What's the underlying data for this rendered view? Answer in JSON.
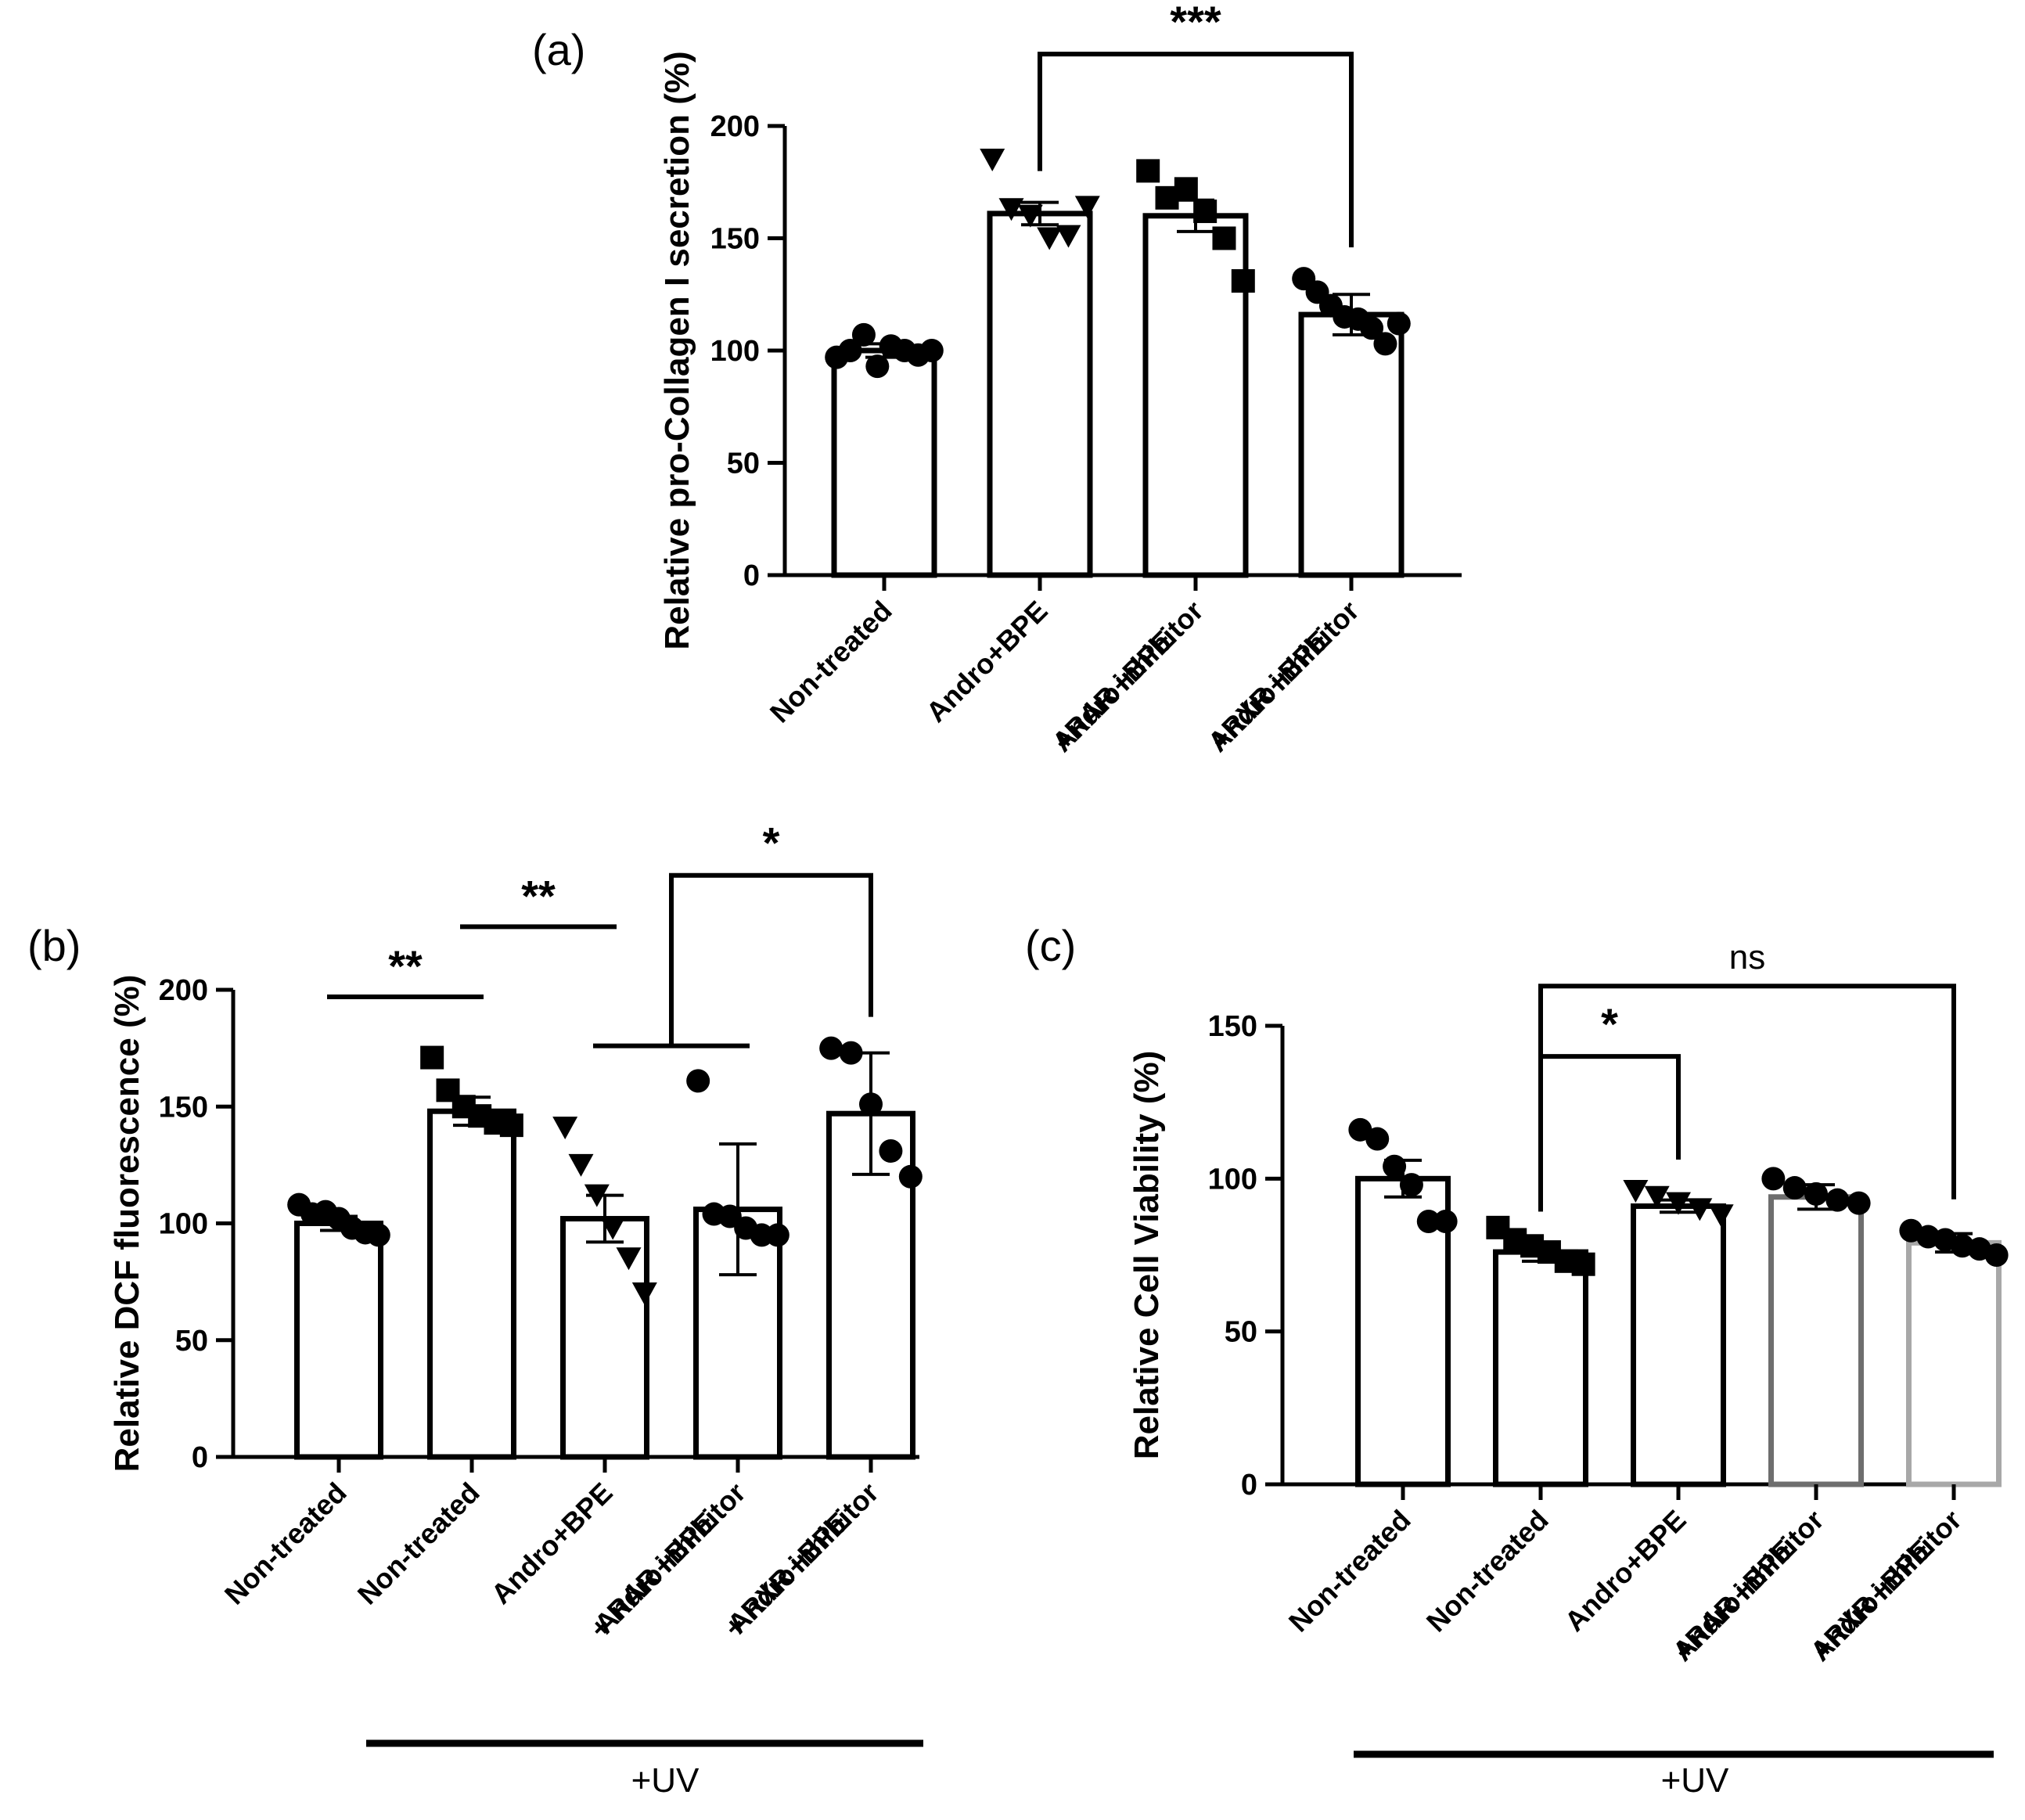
{
  "chart_data": [
    {
      "panel": "(a)",
      "type": "bar",
      "ylabel": "Relative pro-Collagen I secretion (%)",
      "ylim": [
        0,
        200
      ],
      "yticks": [
        0,
        50,
        100,
        150,
        200
      ],
      "categories": [
        [
          "Non-treated"
        ],
        [
          "Andro+BPE"
        ],
        [
          "Andro+BPE",
          "+RAR inhibitor"
        ],
        [
          "Andro+BPE",
          "+RXR inhibitor"
        ]
      ],
      "values": [
        100,
        161,
        160,
        116
      ],
      "errors": [
        3,
        5,
        7,
        9
      ],
      "markers": [
        "circle",
        "triangle-down",
        "square",
        "circle"
      ],
      "bar_colors": [
        "#000000",
        "#000000",
        "#000000",
        "#000000"
      ],
      "points": [
        [
          97,
          100,
          107,
          93,
          102,
          100,
          98,
          100
        ],
        [
          185,
          163,
          160,
          150,
          151,
          164
        ],
        [
          180,
          168,
          172,
          162,
          150,
          131
        ],
        [
          132,
          126,
          120,
          115,
          114,
          110,
          103,
          112
        ]
      ],
      "significance": [
        {
          "from": 1,
          "to": 3,
          "label": "***",
          "y": 232
        }
      ],
      "uv_label": ""
    },
    {
      "panel": "(b)",
      "type": "bar",
      "ylabel": "Relative DCF fluorescence (%)",
      "ylim": [
        0,
        200
      ],
      "yticks": [
        0,
        50,
        100,
        150,
        200
      ],
      "categories": [
        [
          "Non-treated"
        ],
        [
          "Non-treated"
        ],
        [
          "Andro+BPE"
        ],
        [
          "Andro+BPE",
          "+ RAR inhibitor"
        ],
        [
          "Andro+BPE",
          "+ RXR inhibitor"
        ]
      ],
      "values": [
        100,
        148,
        102,
        106,
        147
      ],
      "errors": [
        3,
        6,
        10,
        28,
        26
      ],
      "markers": [
        "circle",
        "square",
        "triangle-down",
        "circle",
        "circle"
      ],
      "bar_colors": [
        "#000000",
        "#000000",
        "#000000",
        "#000000",
        "#000000"
      ],
      "points": [
        [
          108,
          104,
          105,
          102,
          98,
          96,
          95
        ],
        [
          171,
          157,
          150,
          146,
          143,
          142
        ],
        [
          141,
          125,
          112,
          98,
          85,
          70
        ],
        [
          161,
          104,
          103,
          98,
          95,
          95
        ],
        [
          175,
          173,
          151,
          131,
          120
        ]
      ],
      "significance": [
        {
          "line": [
            0,
            1
          ],
          "label": "**",
          "y": 197
        },
        {
          "line": [
            1,
            2
          ],
          "label": "**",
          "y": 227
        },
        {
          "line": [
            2,
            3
          ],
          "label": "",
          "y": 176
        },
        {
          "bracket_from_mid": [
            2,
            3
          ],
          "to": 4,
          "label": "*",
          "y": 249
        }
      ],
      "uv_label": "+UV"
    },
    {
      "panel": "(c)",
      "type": "bar",
      "ylabel": "Relative Cell Viability (%)",
      "ylim": [
        0,
        150
      ],
      "yticks": [
        0,
        50,
        100,
        150
      ],
      "categories": [
        [
          "Non-treated"
        ],
        [
          "Non-treated"
        ],
        [
          "Andro+BPE"
        ],
        [
          "Andro+BPE",
          "+RAR inhibitor"
        ],
        [
          "Andro+BPE",
          "+RXR inhibitor"
        ]
      ],
      "values": [
        100,
        76,
        91,
        94,
        79
      ],
      "errors": [
        6,
        3,
        2,
        4,
        3
      ],
      "markers": [
        "circle",
        "square",
        "triangle-down",
        "circle",
        "circle"
      ],
      "bar_colors": [
        "#000000",
        "#000000",
        "#000000",
        "#6e6e6e",
        "#a8a8a8"
      ],
      "points": [
        [
          116,
          113,
          104,
          98,
          86,
          86
        ],
        [
          84,
          80,
          78,
          76,
          73,
          72
        ],
        [
          96,
          94,
          92,
          90,
          88
        ],
        [
          100,
          97,
          95,
          93,
          92
        ],
        [
          83,
          81,
          80,
          78,
          77,
          75
        ]
      ],
      "significance": [
        {
          "from": 1,
          "to": 2,
          "label": "*",
          "y": 140
        },
        {
          "from": 1,
          "to": 4,
          "label": "ns",
          "y": 163
        }
      ],
      "uv_label": "+UV"
    }
  ]
}
